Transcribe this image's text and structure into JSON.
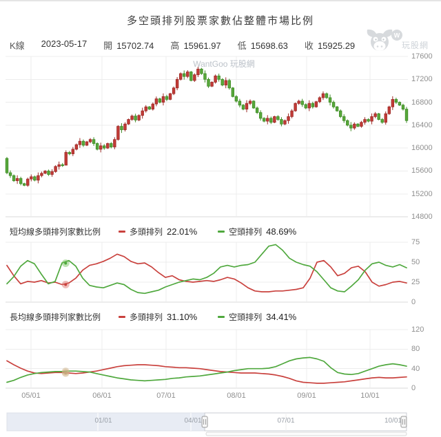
{
  "header": {
    "title": "多空頭排列股票家數佔整體市場比例",
    "info": {
      "k_label": "K線",
      "date": "2023-05-17",
      "open_label": "開",
      "open": "15702.74",
      "high_label": "高",
      "high": "15961.97",
      "low_label": "低",
      "low": "15698.63",
      "close_label": "收",
      "close": "15925.29"
    },
    "logo_text": "玩股網"
  },
  "watermark": "WantGoo 玩股網",
  "sections": {
    "short": {
      "title": "短均線多頭排列家數比例",
      "bull_label": "多頭排列",
      "bull_value": "22.01%",
      "bear_label": "空頭排列",
      "bear_value": "48.69%"
    },
    "long": {
      "title": "長均線多頭排列家數比例",
      "bull_label": "多頭排列",
      "bull_value": "31.10%",
      "bear_label": "空頭排列",
      "bear_value": "34.41%"
    }
  },
  "axes": {
    "price_ticks": [
      "17600",
      "17200",
      "16800",
      "16400",
      "16000",
      "15600",
      "15200",
      "14800"
    ],
    "short_ticks": [
      "75",
      "50",
      "25",
      "0"
    ],
    "long_ticks": [
      "120",
      "80",
      "40",
      "0"
    ],
    "x_ticks": [
      "05/01",
      "06/01",
      "07/01",
      "08/01",
      "09/01",
      "10/01"
    ],
    "nav_ticks": [
      "01/01",
      "04/01",
      "07/01",
      "10/01"
    ]
  },
  "colors": {
    "up": "#c23b37",
    "up_border": "#9d2b27",
    "down": "#58a83b",
    "down_border": "#3e8b25",
    "bull_line": "#c9413d",
    "bear_line": "#4fa83d",
    "grid": "#ececec",
    "grid_dark": "#dadada",
    "axis_text": "#8f8f8f",
    "nav_mask": "#e8ecf4",
    "nav_border": "#c9ccd3",
    "nav_handle": "#999999"
  },
  "navigator": {
    "range_start_frac": 0.495,
    "range_end_frac": 0.993
  },
  "chart_data": [
    {
      "type": "candlestick",
      "ylim": [
        14800,
        17600
      ],
      "y_ticks": [
        17600,
        17200,
        16800,
        16400,
        16000,
        15600,
        15200,
        14800
      ],
      "x_ticks": [
        "05/01",
        "06/01",
        "07/01",
        "08/01",
        "09/01",
        "10/01"
      ],
      "hover": {
        "date": "2023-05-17",
        "open": 15702.74,
        "high": 15961.97,
        "low": 15698.63,
        "close": 15925.29
      },
      "ohlc": [
        [
          15820,
          15845,
          15545,
          15570
        ],
        [
          15570,
          15610,
          15480,
          15520
        ],
        [
          15520,
          15540,
          15410,
          15430
        ],
        [
          15430,
          15525,
          15375,
          15470
        ],
        [
          15470,
          15500,
          15350,
          15380
        ],
        [
          15380,
          15395,
          15335,
          15350
        ],
        [
          15350,
          15485,
          15325,
          15460
        ],
        [
          15460,
          15540,
          15420,
          15500
        ],
        [
          15500,
          15520,
          15420,
          15440
        ],
        [
          15440,
          15575,
          15385,
          15520
        ],
        [
          15520,
          15590,
          15490,
          15560
        ],
        [
          15560,
          15615,
          15545,
          15600
        ],
        [
          15600,
          15625,
          15515,
          15540
        ],
        [
          15540,
          15630,
          15500,
          15590
        ],
        [
          15590,
          15700,
          15570,
          15680
        ],
        [
          15680,
          15765,
          15625,
          15710
        ],
        [
          15710,
          15740,
          15672,
          15702
        ],
        [
          15702,
          15961,
          15698,
          15925
        ],
        [
          15925,
          15950,
          15875,
          15900
        ],
        [
          15900,
          16020,
          15860,
          15980
        ],
        [
          15980,
          16080,
          15960,
          16060
        ],
        [
          16060,
          16175,
          16005,
          16120
        ],
        [
          16120,
          16150,
          16020,
          16050
        ],
        [
          16050,
          16125,
          16035,
          16110
        ],
        [
          16110,
          16175,
          16085,
          16150
        ],
        [
          16150,
          16190,
          16040,
          16080
        ],
        [
          16080,
          16100,
          15960,
          15980
        ],
        [
          15980,
          16095,
          15925,
          16040
        ],
        [
          16040,
          16070,
          15970,
          16000
        ],
        [
          16000,
          16095,
          15985,
          16080
        ],
        [
          16080,
          16105,
          15995,
          16020
        ],
        [
          16020,
          16190,
          15980,
          16150
        ],
        [
          16150,
          16400,
          16130,
          16380
        ],
        [
          16380,
          16435,
          16265,
          16320
        ],
        [
          16320,
          16450,
          16290,
          16420
        ],
        [
          16420,
          16515,
          16405,
          16500
        ],
        [
          16500,
          16585,
          16475,
          16560
        ],
        [
          16560,
          16600,
          16450,
          16490
        ],
        [
          16490,
          16590,
          16470,
          16570
        ],
        [
          16570,
          16705,
          16515,
          16650
        ],
        [
          16650,
          16750,
          16620,
          16720
        ],
        [
          16720,
          16735,
          16665,
          16680
        ],
        [
          16680,
          16795,
          16655,
          16770
        ],
        [
          16770,
          16900,
          16730,
          16860
        ],
        [
          16860,
          16880,
          16780,
          16800
        ],
        [
          16800,
          16955,
          16745,
          16900
        ],
        [
          16900,
          16930,
          16820,
          16850
        ],
        [
          16850,
          16965,
          16835,
          16950
        ],
        [
          16950,
          17075,
          16925,
          17050
        ],
        [
          17050,
          17240,
          17010,
          17200
        ],
        [
          17200,
          17320,
          17180,
          17300
        ],
        [
          17300,
          17355,
          17195,
          17250
        ],
        [
          17250,
          17360,
          17220,
          17330
        ],
        [
          17330,
          17345,
          17165,
          17180
        ],
        [
          17180,
          17305,
          17155,
          17280
        ],
        [
          17280,
          17420,
          17240,
          17380
        ],
        [
          17380,
          17400,
          17280,
          17300
        ],
        [
          17300,
          17355,
          17145,
          17200
        ],
        [
          17200,
          17230,
          17050,
          17080
        ],
        [
          17080,
          17165,
          17065,
          17150
        ],
        [
          17150,
          17285,
          17125,
          17260
        ],
        [
          17260,
          17300,
          17160,
          17200
        ],
        [
          17200,
          17220,
          17080,
          17100
        ],
        [
          17100,
          17235,
          17045,
          17180
        ],
        [
          17180,
          17210,
          17020,
          17050
        ],
        [
          17050,
          17065,
          16885,
          16900
        ],
        [
          16900,
          16925,
          16795,
          16820
        ],
        [
          16820,
          16860,
          16710,
          16750
        ],
        [
          16750,
          16770,
          16660,
          16680
        ],
        [
          16680,
          16835,
          16625,
          16780
        ],
        [
          16780,
          16850,
          16750,
          16820
        ],
        [
          16820,
          16835,
          16685,
          16700
        ],
        [
          16700,
          16725,
          16595,
          16620
        ],
        [
          16620,
          16660,
          16480,
          16520
        ],
        [
          16520,
          16540,
          16450,
          16470
        ],
        [
          16470,
          16575,
          16415,
          16520
        ],
        [
          16520,
          16550,
          16420,
          16450
        ],
        [
          16450,
          16565,
          16435,
          16550
        ],
        [
          16550,
          16575,
          16475,
          16500
        ],
        [
          16500,
          16540,
          16380,
          16420
        ],
        [
          16420,
          16500,
          16400,
          16480
        ],
        [
          16480,
          16605,
          16425,
          16550
        ],
        [
          16550,
          16680,
          16520,
          16650
        ],
        [
          16650,
          16795,
          16635,
          16780
        ],
        [
          16780,
          16845,
          16755,
          16820
        ],
        [
          16820,
          16860,
          16720,
          16760
        ],
        [
          16760,
          16780,
          16680,
          16700
        ],
        [
          16700,
          16835,
          16645,
          16780
        ],
        [
          16780,
          16810,
          16690,
          16720
        ],
        [
          16720,
          16825,
          16705,
          16810
        ],
        [
          16810,
          16905,
          16785,
          16880
        ],
        [
          16880,
          16990,
          16840,
          16950
        ],
        [
          16950,
          16970,
          16860,
          16880
        ],
        [
          16880,
          16935,
          16745,
          16800
        ],
        [
          16800,
          16830,
          16690,
          16720
        ],
        [
          16720,
          16735,
          16635,
          16650
        ],
        [
          16650,
          16675,
          16525,
          16550
        ],
        [
          16550,
          16590,
          16440,
          16480
        ],
        [
          16480,
          16500,
          16380,
          16400
        ],
        [
          16400,
          16455,
          16295,
          16350
        ],
        [
          16350,
          16450,
          16320,
          16420
        ],
        [
          16420,
          16435,
          16365,
          16380
        ],
        [
          16380,
          16475,
          16355,
          16450
        ],
        [
          16450,
          16540,
          16410,
          16500
        ],
        [
          16500,
          16520,
          16450,
          16470
        ],
        [
          16470,
          16605,
          16415,
          16550
        ],
        [
          16550,
          16630,
          16520,
          16600
        ],
        [
          16600,
          16615,
          16485,
          16500
        ],
        [
          16500,
          16525,
          16425,
          16450
        ],
        [
          16450,
          16640,
          16410,
          16600
        ],
        [
          16600,
          16740,
          16580,
          16720
        ],
        [
          16720,
          16905,
          16665,
          16850
        ],
        [
          16850,
          16880,
          16770,
          16800
        ],
        [
          16800,
          16815,
          16735,
          16750
        ],
        [
          16750,
          16775,
          16655,
          16680
        ],
        [
          16680,
          16720,
          16440,
          16480
        ]
      ]
    },
    {
      "type": "line",
      "title": "短均線多頭排列家數比例",
      "ylim": [
        0,
        75
      ],
      "y_ticks": [
        75,
        50,
        25,
        0
      ],
      "series": [
        {
          "name": "多頭排列",
          "color": "#c9413d",
          "values": [
            46,
            33,
            23,
            26,
            25,
            27,
            24,
            25,
            22,
            24,
            30,
            40,
            46,
            48,
            51,
            55,
            60,
            57,
            51,
            48,
            49,
            44,
            37,
            31,
            33,
            28,
            26,
            25,
            26,
            27,
            26,
            28,
            31,
            29,
            24,
            18,
            14,
            13,
            13,
            14,
            14,
            15,
            16,
            18,
            30,
            50,
            52,
            44,
            33,
            36,
            43,
            45,
            38,
            25,
            20,
            22,
            25,
            26,
            24
          ]
        },
        {
          "name": "空頭排列",
          "color": "#4fa83d",
          "values": [
            23,
            32,
            45,
            52,
            48,
            35,
            23,
            26,
            49,
            52,
            45,
            30,
            21,
            19,
            18,
            21,
            24,
            22,
            16,
            12,
            11,
            13,
            15,
            19,
            22,
            25,
            27,
            29,
            28,
            31,
            36,
            44,
            46,
            44,
            46,
            47,
            50,
            60,
            70,
            72,
            65,
            55,
            50,
            47,
            45,
            38,
            28,
            18,
            14,
            13,
            20,
            28,
            40,
            48,
            50,
            46,
            44,
            47,
            43
          ]
        }
      ],
      "markers": [
        {
          "x_frac": 0.147,
          "value": 22.01,
          "halo": "rgba(220,110,105,0.45)",
          "core": "#c9413d"
        },
        {
          "x_frac": 0.147,
          "value": 48.69,
          "halo": "rgba(110,190,85,0.45)",
          "core": "#4fa83d"
        }
      ]
    },
    {
      "type": "line",
      "title": "長均線多頭排列家數比例",
      "ylim": [
        0,
        120
      ],
      "y_ticks": [
        120,
        80,
        40,
        0
      ],
      "series": [
        {
          "name": "多頭排列",
          "color": "#c9413d",
          "values": [
            56,
            48,
            41,
            35,
            31,
            30,
            31,
            32,
            32,
            31,
            30,
            31,
            33,
            35,
            38,
            41,
            44,
            46,
            47,
            48,
            48,
            47,
            46,
            44,
            43,
            42,
            42,
            41,
            40,
            38,
            36,
            34,
            33,
            32,
            31,
            31,
            31,
            30,
            29,
            27,
            24,
            20,
            15,
            12,
            11,
            10,
            10,
            11,
            12,
            13,
            15,
            17,
            19,
            21,
            22,
            21,
            21,
            22,
            23
          ]
        },
        {
          "name": "空頭排列",
          "color": "#4fa83d",
          "values": [
            12,
            16,
            22,
            27,
            30,
            32,
            33,
            34,
            34,
            35,
            35,
            34,
            33,
            30,
            27,
            24,
            21,
            19,
            17,
            16,
            15,
            16,
            17,
            18,
            20,
            21,
            23,
            24,
            25,
            27,
            29,
            31,
            33,
            36,
            38,
            40,
            40,
            40,
            41,
            44,
            50,
            56,
            60,
            62,
            63,
            60,
            55,
            42,
            32,
            29,
            28,
            30,
            35,
            40,
            45,
            48,
            50,
            48,
            45
          ]
        }
      ],
      "markers": [
        {
          "x_frac": 0.147,
          "value": 31.1,
          "halo": "rgba(205,175,130,0.55)",
          "core": "rgba(190,160,115,0.9)"
        },
        {
          "x_frac": 0.147,
          "value": 34.41,
          "halo": "rgba(205,175,130,0.45)",
          "core": "rgba(190,160,115,0.0)"
        }
      ]
    }
  ]
}
